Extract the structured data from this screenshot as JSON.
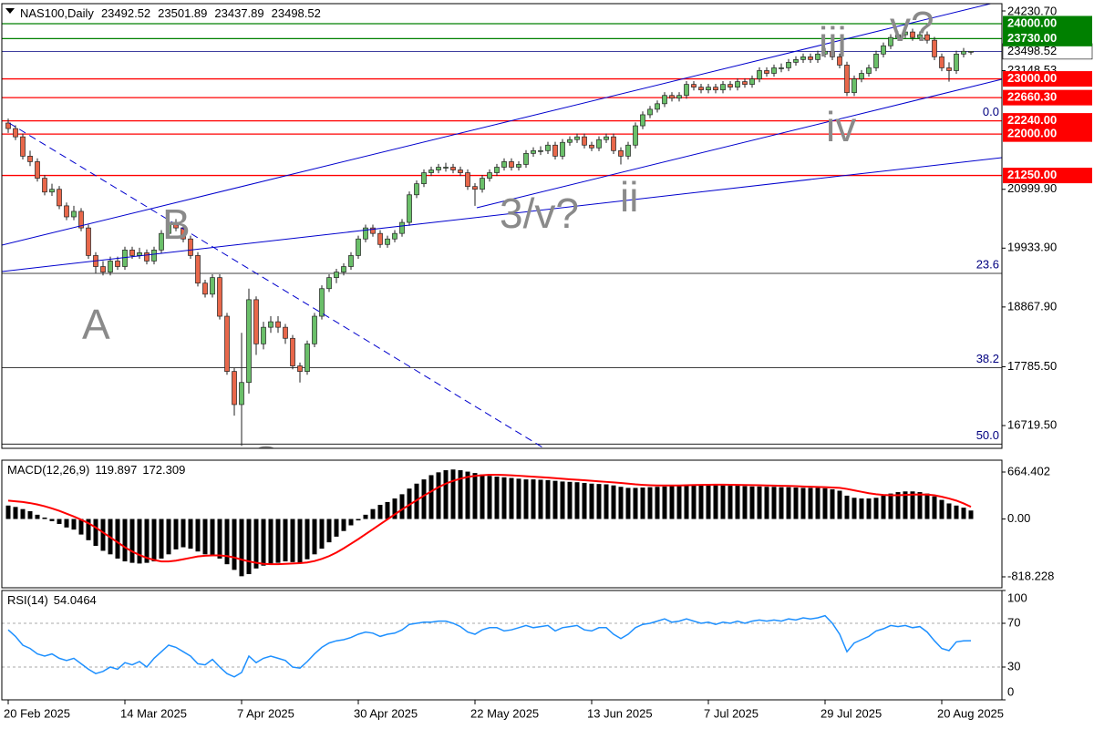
{
  "chart_data": [
    {
      "type": "candlestick",
      "title": "NAS100,Daily",
      "up_color": "#6abf69",
      "down_color": "#e8674a",
      "price_line_color": "#000080",
      "categories": [
        "20 Feb 2025",
        null,
        null,
        null,
        null,
        null,
        null,
        null,
        null,
        null,
        null,
        null,
        null,
        null,
        null,
        null,
        "14 Mar 2025",
        null,
        null,
        null,
        null,
        null,
        null,
        null,
        null,
        null,
        null,
        null,
        null,
        null,
        null,
        null,
        "7 Apr 2025",
        null,
        null,
        null,
        null,
        null,
        null,
        null,
        null,
        null,
        null,
        null,
        null,
        null,
        null,
        null,
        "30 Apr 2025",
        null,
        null,
        null,
        null,
        null,
        null,
        null,
        null,
        null,
        null,
        null,
        null,
        null,
        null,
        null,
        "22 May 2025",
        null,
        null,
        null,
        null,
        null,
        null,
        null,
        null,
        null,
        null,
        null,
        null,
        null,
        null,
        null,
        "13 Jun 2025",
        null,
        null,
        null,
        null,
        null,
        null,
        null,
        null,
        null,
        null,
        null,
        null,
        null,
        null,
        null,
        "7 Jul 2025",
        null,
        null,
        null,
        null,
        null,
        null,
        null,
        null,
        null,
        null,
        null,
        null,
        null,
        null,
        null,
        "29 Jul 2025",
        null,
        null,
        null,
        null,
        null,
        null,
        null,
        null,
        null,
        null,
        null,
        null,
        null,
        null,
        null,
        "20 Aug 2025",
        null,
        null,
        null,
        null
      ],
      "open": [
        22200,
        22100,
        21950,
        21600,
        21500,
        21200,
        20950,
        21000,
        20700,
        20500,
        20600,
        20300,
        19800,
        19600,
        19500,
        19700,
        19600,
        19900,
        19800,
        19850,
        19700,
        19900,
        20200,
        20400,
        20300,
        20100,
        19800,
        19300,
        19100,
        19400,
        18700,
        17700,
        17100,
        17500,
        19000,
        18200,
        18500,
        18600,
        18500,
        18300,
        17800,
        17700,
        18200,
        18700,
        19200,
        19400,
        19500,
        19600,
        19800,
        20100,
        20300,
        20200,
        20000,
        20100,
        20200,
        20400,
        20900,
        21100,
        21300,
        21350,
        21400,
        21400,
        21350,
        21300,
        21050,
        21000,
        21200,
        21300,
        21400,
        21500,
        21400,
        21450,
        21650,
        21700,
        21700,
        21800,
        21600,
        21850,
        21900,
        21950,
        21800,
        21750,
        21900,
        21950,
        21700,
        21600,
        21800,
        22150,
        22350,
        22450,
        22550,
        22700,
        22650,
        22700,
        22900,
        22850,
        22800,
        22850,
        22800,
        22900,
        22850,
        22950,
        22900,
        23000,
        23150,
        23100,
        23200,
        23200,
        23300,
        23350,
        23400,
        23350,
        23450,
        23500,
        23400,
        23250,
        22750,
        23000,
        23100,
        23200,
        23450,
        23600,
        23750,
        23800,
        23850,
        23750,
        23800,
        23700,
        23400,
        23200,
        23150,
        23450,
        23492.52
      ],
      "high": [
        22280,
        22160,
        22010,
        21700,
        21560,
        21260,
        21100,
        21060,
        20760,
        20700,
        20660,
        20360,
        19860,
        19700,
        19780,
        19780,
        19960,
        19960,
        19940,
        19910,
        19960,
        20260,
        20460,
        20460,
        20360,
        20160,
        19860,
        19360,
        19460,
        19460,
        18760,
        17760,
        18400,
        19200,
        19060,
        18600,
        18700,
        18700,
        18560,
        18360,
        17860,
        18260,
        18760,
        19260,
        19460,
        19560,
        19660,
        19860,
        20160,
        20360,
        20360,
        20260,
        20160,
        20260,
        20460,
        20960,
        21160,
        21360,
        21410,
        21460,
        21480,
        21460,
        21410,
        21360,
        21110,
        21260,
        21360,
        21460,
        21560,
        21560,
        21510,
        21710,
        21760,
        21780,
        21860,
        21860,
        21910,
        21960,
        22010,
        22010,
        21860,
        21960,
        22010,
        22010,
        21760,
        21860,
        22210,
        22410,
        22510,
        22610,
        22760,
        22760,
        22760,
        22960,
        22960,
        22910,
        22910,
        22910,
        22960,
        22960,
        23010,
        23010,
        23060,
        23210,
        23210,
        23260,
        23280,
        23360,
        23410,
        23460,
        23460,
        23510,
        23560,
        23560,
        23460,
        23310,
        23060,
        23160,
        23260,
        23510,
        23660,
        23810,
        23860,
        24000,
        23910,
        23860,
        23860,
        23760,
        23460,
        23300,
        23510,
        23560,
        23501.89
      ],
      "low": [
        22020,
        21890,
        21540,
        21420,
        21140,
        20890,
        20880,
        20640,
        20440,
        20440,
        20240,
        19740,
        19480,
        19440,
        19440,
        19540,
        19540,
        19740,
        19740,
        19640,
        19640,
        19840,
        20140,
        20240,
        20040,
        19740,
        19240,
        19040,
        19040,
        18640,
        17640,
        16900,
        16350,
        17300,
        18000,
        18100,
        18400,
        18400,
        18200,
        17740,
        17500,
        17640,
        18140,
        18640,
        19140,
        19300,
        19440,
        19540,
        19740,
        20040,
        20140,
        19940,
        19940,
        20040,
        20140,
        20340,
        20840,
        21040,
        21240,
        21290,
        21320,
        21290,
        21240,
        20990,
        20700,
        20940,
        21140,
        21240,
        21340,
        21340,
        21340,
        21390,
        21590,
        21620,
        21640,
        21540,
        21540,
        21790,
        21840,
        21740,
        21690,
        21690,
        21840,
        21640,
        21450,
        21540,
        21740,
        22090,
        22290,
        22390,
        22490,
        22590,
        22590,
        22640,
        22790,
        22740,
        22740,
        22740,
        22740,
        22790,
        22790,
        22840,
        22840,
        22940,
        23040,
        23040,
        23120,
        23140,
        23240,
        23290,
        23290,
        23290,
        23390,
        23340,
        23190,
        22690,
        22690,
        22940,
        23040,
        23140,
        23390,
        23540,
        23690,
        23740,
        23690,
        23690,
        23640,
        23340,
        23140,
        22950,
        23090,
        23390,
        23437.89
      ],
      "close": [
        22100,
        21950,
        21600,
        21500,
        21200,
        20950,
        21000,
        20700,
        20500,
        20600,
        20300,
        19800,
        19600,
        19500,
        19700,
        19600,
        19900,
        19800,
        19850,
        19700,
        19900,
        20200,
        20400,
        20300,
        20100,
        19800,
        19300,
        19100,
        19400,
        18700,
        17700,
        17100,
        17500,
        19000,
        18200,
        18500,
        18600,
        18500,
        18300,
        17800,
        17700,
        18200,
        18700,
        19200,
        19400,
        19500,
        19600,
        19800,
        20100,
        20300,
        20200,
        20000,
        20100,
        20200,
        20400,
        20900,
        21100,
        21300,
        21350,
        21400,
        21400,
        21350,
        21300,
        21050,
        21000,
        21200,
        21300,
        21400,
        21500,
        21400,
        21450,
        21650,
        21700,
        21700,
        21800,
        21600,
        21850,
        21900,
        21950,
        21800,
        21750,
        21900,
        21950,
        21700,
        21600,
        21800,
        22150,
        22350,
        22450,
        22550,
        22700,
        22650,
        22700,
        22900,
        22850,
        22800,
        22850,
        22800,
        22900,
        22850,
        22950,
        22900,
        23000,
        23150,
        23100,
        23200,
        23200,
        23300,
        23350,
        23400,
        23350,
        23450,
        23500,
        23400,
        23250,
        22750,
        23000,
        23100,
        23200,
        23450,
        23600,
        23750,
        23800,
        23850,
        23750,
        23800,
        23700,
        23400,
        23200,
        23150,
        23450,
        23500,
        23498.52
      ],
      "levels": [
        {
          "value": 24000,
          "label": "24000.00",
          "color": "#008000"
        },
        {
          "value": 23730,
          "label": "23730.00",
          "color": "#008000"
        },
        {
          "value": 23000,
          "label": "23000.00",
          "color": "#ff0000"
        },
        {
          "value": 22660.3,
          "label": "22660.30",
          "color": "#ff0000"
        },
        {
          "value": 22240,
          "label": "22240.00",
          "color": "#ff0000"
        },
        {
          "value": 22000,
          "label": "22000.00",
          "color": "#ff0000"
        },
        {
          "value": 21250,
          "label": "21250.00",
          "color": "#ff0000"
        }
      ],
      "fib_levels": [
        {
          "label": "0.0",
          "price": 22240
        },
        {
          "label": "23.6",
          "price": 19476
        },
        {
          "label": "38.2",
          "price": 17766
        },
        {
          "label": "50.0",
          "price": 16384
        }
      ],
      "annotations": [
        "A",
        "B",
        "C",
        "3/v?",
        "ii",
        "iii",
        "iv",
        "v?"
      ],
      "ylim": [
        16307,
        24363
      ],
      "yticks": [
        {
          "value": 24230.7,
          "label": "24230.70"
        },
        23148.53,
        {
          "value": 20999.9,
          "label": "20999.90"
        },
        {
          "value": 19933.9,
          "label": "19933.90"
        },
        {
          "value": 18867.9,
          "label": "18867.90"
        },
        {
          "value": 17785.5,
          "label": "17785.50"
        },
        {
          "value": 16719.5,
          "label": "16719.50"
        }
      ]
    },
    {
      "type": "bar",
      "title": "MACD(12,26,9)",
      "series": [
        {
          "type": "bar",
          "color": "#000000",
          "values": [
            190,
            170,
            140,
            110,
            60,
            20,
            -30,
            -70,
            -120,
            -150,
            -220,
            -300,
            -380,
            -450,
            -500,
            -560,
            -600,
            -620,
            -630,
            -620,
            -600,
            -560,
            -500,
            -430,
            -400,
            -420,
            -460,
            -500,
            -520,
            -560,
            -640,
            -720,
            -810,
            -780,
            -700,
            -660,
            -640,
            -620,
            -600,
            -610,
            -620,
            -570,
            -500,
            -420,
            -330,
            -250,
            -170,
            -90,
            -20,
            60,
            140,
            200,
            240,
            290,
            350,
            430,
            500,
            560,
            620,
            660,
            690,
            700,
            690,
            670,
            650,
            630,
            610,
            600,
            590,
            580,
            570,
            560,
            560,
            555,
            550,
            540,
            530,
            525,
            520,
            510,
            500,
            495,
            490,
            475,
            455,
            440,
            440,
            445,
            450,
            455,
            460,
            470,
            480,
            485,
            490,
            490,
            485,
            480,
            475,
            470,
            470,
            465,
            460,
            460,
            455,
            455,
            450,
            450,
            445,
            440,
            440,
            440,
            435,
            420,
            400,
            330,
            300,
            290,
            290,
            300,
            330,
            360,
            380,
            390,
            390,
            380,
            360,
            320,
            270,
            220,
            190,
            160,
            119.897
          ]
        },
        {
          "type": "line",
          "color": "#ff0000",
          "values": [
            260,
            250,
            240,
            225,
            205,
            180,
            150,
            115,
            75,
            35,
            -10,
            -60,
            -120,
            -190,
            -260,
            -330,
            -400,
            -460,
            -510,
            -550,
            -580,
            -600,
            -600,
            -590,
            -570,
            -550,
            -530,
            -520,
            -515,
            -515,
            -525,
            -545,
            -575,
            -600,
            -620,
            -635,
            -640,
            -640,
            -635,
            -630,
            -625,
            -615,
            -595,
            -565,
            -525,
            -475,
            -415,
            -350,
            -285,
            -215,
            -145,
            -75,
            -5,
            65,
            135,
            200,
            265,
            330,
            390,
            450,
            500,
            540,
            570,
            595,
            610,
            620,
            625,
            625,
            622,
            618,
            612,
            605,
            598,
            592,
            585,
            578,
            570,
            562,
            555,
            548,
            540,
            532,
            525,
            518,
            510,
            500,
            490,
            483,
            478,
            475,
            474,
            474,
            475,
            477,
            480,
            482,
            484,
            485,
            485,
            484,
            483,
            481,
            479,
            477,
            475,
            472,
            470,
            467,
            464,
            460,
            457,
            454,
            450,
            446,
            440,
            425,
            405,
            385,
            365,
            350,
            340,
            335,
            335,
            340,
            345,
            347,
            345,
            335,
            315,
            290,
            260,
            220,
            172.309
          ]
        }
      ],
      "ylim": [
        -973,
        832
      ],
      "yticks": [
        664.402,
        {
          "value": 0,
          "label": "0.00"
        },
        -818.228
      ]
    },
    {
      "type": "line",
      "title": "RSI(14)",
      "color": "#1e90ff",
      "grid": "dashed",
      "values": [
        64,
        58,
        50,
        47,
        42,
        40,
        42,
        38,
        36,
        38,
        33,
        28,
        24,
        26,
        30,
        28,
        34,
        32,
        35,
        30,
        38,
        44,
        50,
        48,
        44,
        40,
        33,
        32,
        37,
        30,
        24,
        21,
        25,
        40,
        34,
        38,
        40,
        38,
        36,
        30,
        29,
        35,
        42,
        48,
        52,
        54,
        55,
        57,
        60,
        62,
        61,
        58,
        60,
        61,
        64,
        69,
        70,
        71,
        71,
        72,
        72,
        70,
        67,
        62,
        60,
        64,
        66,
        66,
        63,
        64,
        66,
        68,
        66,
        67,
        68,
        63,
        66,
        67,
        68,
        64,
        63,
        66,
        66,
        60,
        56,
        60,
        66,
        69,
        70,
        72,
        74,
        71,
        72,
        74,
        72,
        70,
        71,
        69,
        71,
        70,
        72,
        70,
        72,
        73,
        72,
        73,
        72,
        74,
        73,
        75,
        74,
        75,
        77,
        70,
        60,
        44,
        52,
        55,
        58,
        63,
        65,
        68,
        67,
        68,
        66,
        67,
        62,
        54,
        47,
        45,
        53,
        54,
        54.0464
      ],
      "ylim": [
        0,
        100
      ],
      "yticks": [
        100,
        70,
        30,
        0
      ]
    }
  ]
}
